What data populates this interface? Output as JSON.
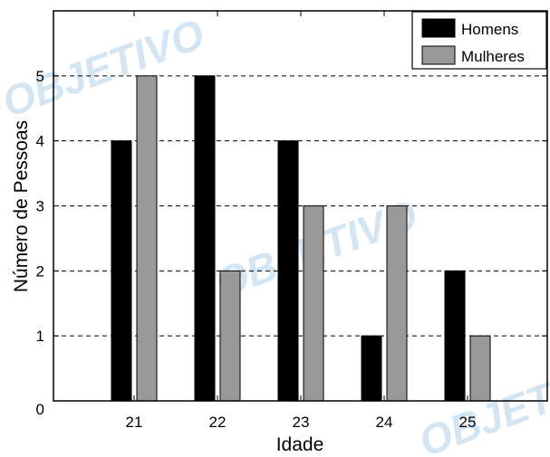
{
  "chart_data": {
    "type": "bar",
    "categories": [
      "21",
      "22",
      "23",
      "24",
      "25"
    ],
    "series": [
      {
        "name": "Homens",
        "values": [
          4,
          5,
          4,
          1,
          2
        ],
        "color": "#000000"
      },
      {
        "name": "Mulheres",
        "values": [
          5,
          2,
          3,
          3,
          1
        ],
        "color": "#999999"
      }
    ],
    "xlabel": "Idade",
    "ylabel": "Número de Pessoas",
    "ylim": [
      0,
      6
    ],
    "yticks": [
      0,
      1,
      2,
      3,
      4,
      5
    ],
    "grid": "dashed horizontal",
    "legend": "top-right"
  },
  "watermark": {
    "text": "OBJETIVO",
    "color": "#cfe3f2"
  }
}
